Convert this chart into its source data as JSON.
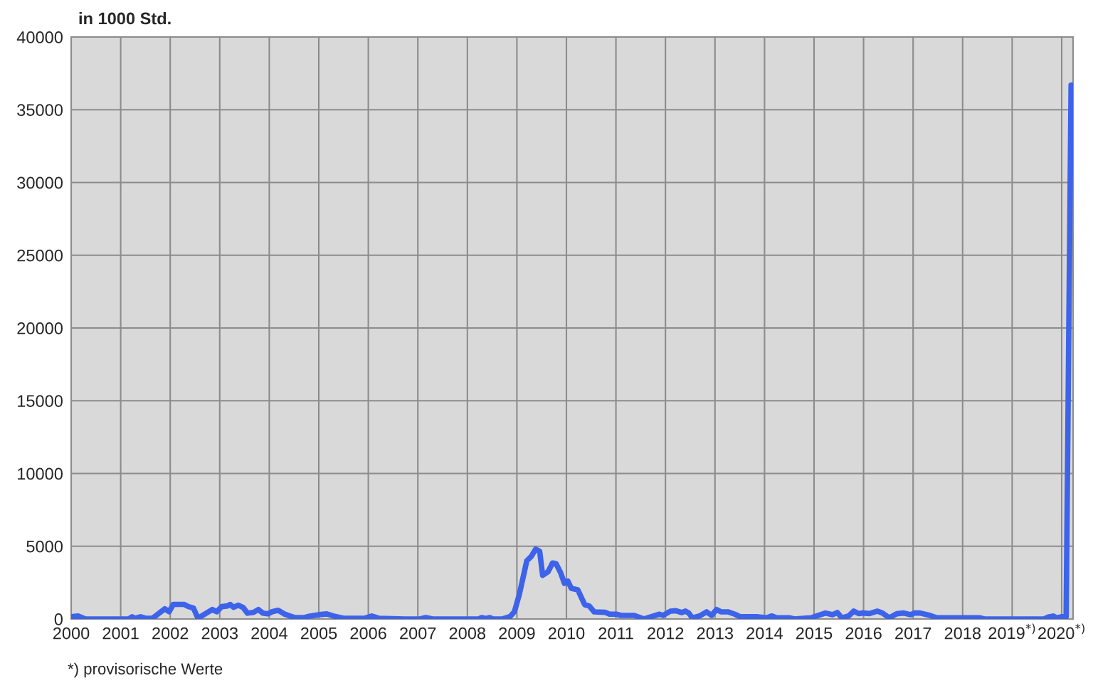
{
  "chart_data": {
    "type": "line",
    "title": "in 1000 Std.",
    "x": [
      2000.0,
      2000.14,
      2000.29,
      2001.16,
      2001.23,
      2001.3,
      2001.4,
      2001.5,
      2001.64,
      2001.74,
      2001.89,
      2001.98,
      2002.06,
      2002.28,
      2002.37,
      2002.47,
      2002.56,
      2002.73,
      2002.85,
      2002.94,
      2003.04,
      2003.16,
      2003.21,
      2003.28,
      2003.37,
      2003.47,
      2003.56,
      2003.68,
      2003.78,
      2003.87,
      2003.97,
      2004.06,
      2004.18,
      2004.3,
      2004.42,
      2004.51,
      2004.71,
      2004.82,
      2005.02,
      2005.16,
      2005.3,
      2005.5,
      2005.93,
      2006.07,
      2006.21,
      2006.74,
      2007.04,
      2007.16,
      2007.3,
      2008.23,
      2008.29,
      2008.38,
      2008.45,
      2008.52,
      2008.71,
      2008.86,
      2008.95,
      2009.05,
      2009.2,
      2009.29,
      2009.38,
      2009.46,
      2009.52,
      2009.63,
      2009.72,
      2009.79,
      2009.88,
      2009.96,
      2010.03,
      2010.1,
      2010.23,
      2010.37,
      2010.46,
      2010.56,
      2010.78,
      2010.87,
      2011.01,
      2011.1,
      2011.37,
      2011.57,
      2011.88,
      2011.95,
      2012.1,
      2012.21,
      2012.33,
      2012.4,
      2012.47,
      2012.54,
      2012.69,
      2012.83,
      2012.93,
      2013.03,
      2013.12,
      2013.26,
      2013.4,
      2013.5,
      2013.84,
      2014.04,
      2014.15,
      2014.24,
      2014.51,
      2014.6,
      2014.94,
      2015.23,
      2015.37,
      2015.47,
      2015.56,
      2015.7,
      2015.8,
      2015.9,
      2015.99,
      2016.12,
      2016.28,
      2016.38,
      2016.52,
      2016.67,
      2016.81,
      2016.95,
      2017.02,
      2017.14,
      2017.34,
      2017.48,
      2018.35,
      2018.44,
      2019.64,
      2019.73,
      2019.83,
      2019.9,
      2020.0,
      2020.09,
      2020.19
    ],
    "series": [
      {
        "color": "#3d63ea",
        "values": [
          150,
          200,
          0,
          0,
          150,
          50,
          150,
          50,
          50,
          300,
          700,
          500,
          1000,
          1000,
          850,
          750,
          50,
          400,
          650,
          500,
          850,
          900,
          1000,
          800,
          950,
          800,
          400,
          450,
          650,
          400,
          350,
          500,
          600,
          350,
          200,
          100,
          100,
          200,
          300,
          350,
          200,
          50,
          50,
          200,
          50,
          0,
          0,
          100,
          0,
          0,
          100,
          30,
          100,
          0,
          0,
          160,
          500,
          1700,
          4000,
          4300,
          4800,
          4650,
          3000,
          3250,
          3850,
          3800,
          3200,
          2450,
          2600,
          2100,
          2000,
          980,
          900,
          490,
          460,
          330,
          330,
          245,
          245,
          0,
          330,
          245,
          540,
          570,
          440,
          540,
          410,
          80,
          210,
          490,
          245,
          650,
          490,
          490,
          330,
          160,
          160,
          80,
          210,
          80,
          80,
          0,
          80,
          410,
          290,
          440,
          80,
          210,
          540,
          375,
          410,
          375,
          540,
          410,
          80,
          360,
          410,
          290,
          410,
          410,
          245,
          80,
          80,
          0,
          0,
          130,
          200,
          80,
          160,
          160,
          36700
        ]
      }
    ],
    "xlim": [
      2000,
      2020.23
    ],
    "xticks": [
      2000,
      2001,
      2002,
      2003,
      2004,
      2005,
      2006,
      2007,
      2008,
      2009,
      2010,
      2011,
      2012,
      2013,
      2014,
      2015,
      2016,
      2017,
      2018,
      {
        "value": 2019,
        "label": "2019$^{*)}$"
      },
      {
        "value": 2020,
        "label": "2020$^{*)}$"
      }
    ],
    "ylim": [
      0,
      40000
    ],
    "yticks": [
      0,
      5000,
      10000,
      15000,
      20000,
      25000,
      30000,
      35000,
      40000
    ],
    "grid": true,
    "line_style": "solid",
    "marker": "none",
    "annotations": [
      "*) provisorische Werte"
    ]
  }
}
